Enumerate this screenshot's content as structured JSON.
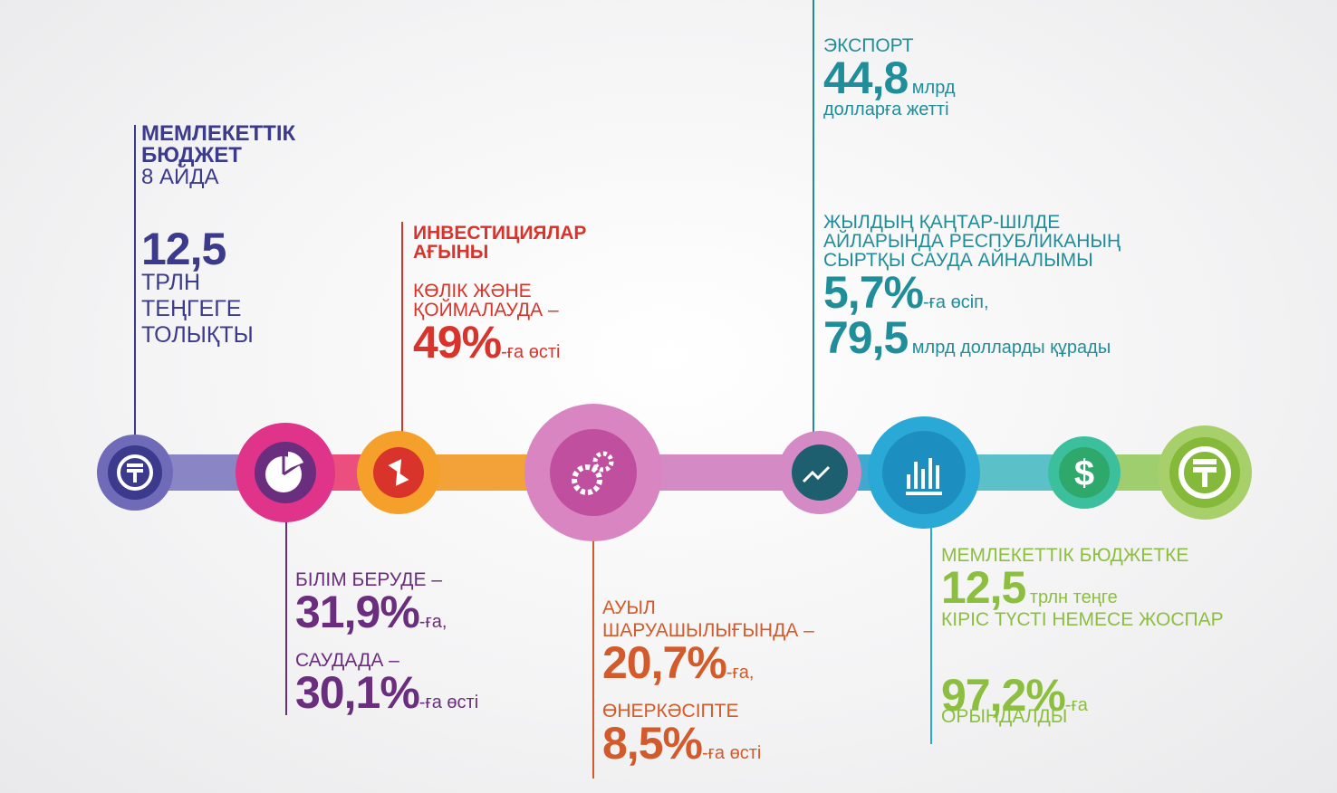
{
  "budget": {
    "title_lines": [
      "МЕМЛЕКЕТТІК",
      "БЮДЖЕТ"
    ],
    "period": "8 АЙДА",
    "value": "12,5",
    "unit_lines": [
      "ТРЛН",
      "ТЕҢГЕГЕ",
      "ТОЛЫҚТЫ"
    ]
  },
  "investment": {
    "title_lines": [
      "ИНВЕСТИЦИЯЛАР",
      "АҒЫНЫ"
    ],
    "sector_lines": [
      "КӨЛІК ЖӘНЕ",
      "ҚОЙМАЛАУДА –"
    ],
    "value": "49%",
    "suffix": "-ға өсті"
  },
  "education_trade": {
    "education": "БІЛІМ БЕРУДЕ –",
    "education_value": "31,9%",
    "education_suffix": "-ға,",
    "trade": "САУДАДА –",
    "trade_value": "30,1%",
    "trade_suffix": "-ға өсті"
  },
  "agriculture_industry": {
    "agriculture_lines": [
      "АУЫЛ",
      "ШАРУАШЫЛЫҒЫНДА –"
    ],
    "agriculture_value": "20,7%",
    "agriculture_suffix": "-ға,",
    "industry": "ӨНЕРКӘСІПТЕ",
    "industry_value": "8,5%",
    "industry_suffix": "-ға өсті"
  },
  "export": {
    "title": "ЭКСПОРТ",
    "value": "44,8",
    "unit": "млрд",
    "text": "долларға жетті"
  },
  "trade_turnover": {
    "title_lines": [
      "ЖЫЛДЫҢ ҚАҢТАР-ШІЛДЕ",
      "АЙЛАРЫНДА РЕСПУБЛИКАНЫҢ",
      "СЫРТҚЫ САУДА АЙНАЛЫМЫ"
    ],
    "growth_value": "5,7%",
    "growth_suffix": "-ға өсіп,",
    "volume_value": "79,5",
    "volume_suffix": "млрд долларды құрады"
  },
  "budget_revenue": {
    "title": "МЕМЛЕКЕТТІК БЮДЖЕТКЕ",
    "value": "12,5",
    "unit": "трлн теңге",
    "text": "КІРІС ТҮСТІ НЕМЕСЕ ЖОСПАР",
    "percent": "97,2%",
    "percent_suffix": "-ға",
    "result": "ОРЫНДАЛДЫ"
  }
}
